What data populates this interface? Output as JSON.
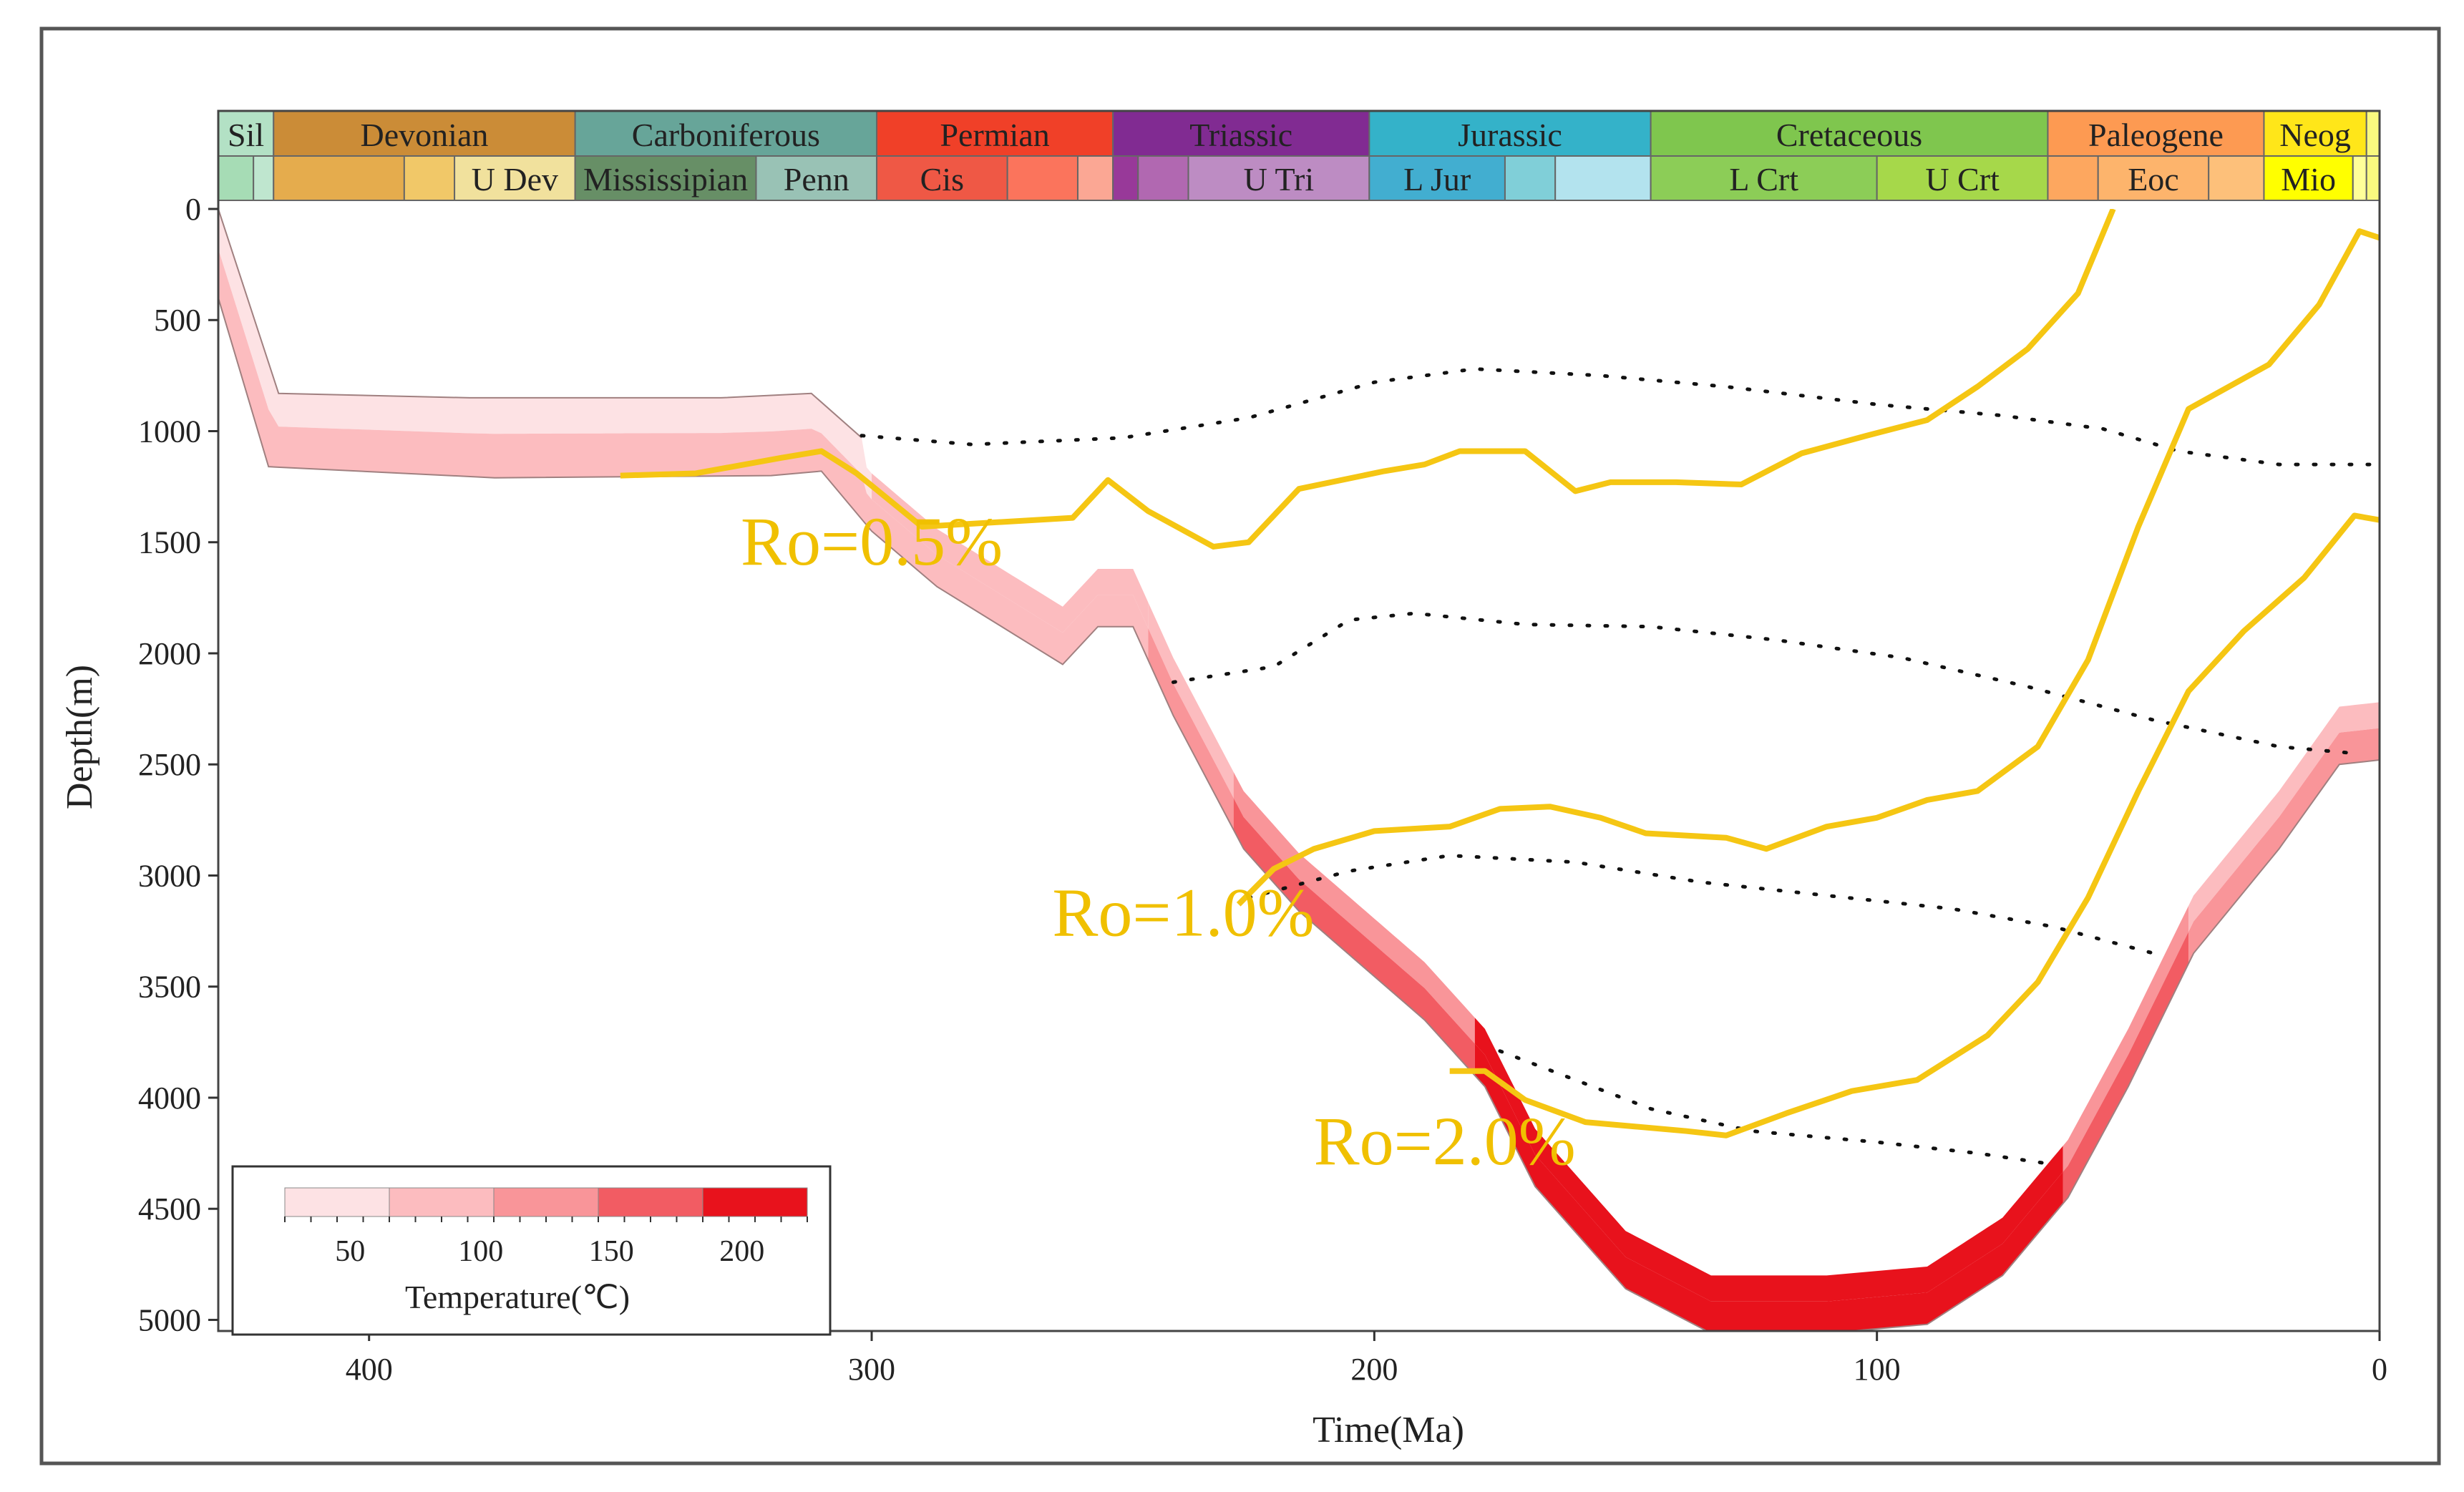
{
  "chart_data": {
    "type": "line",
    "title": "",
    "xlabel": "Time(Ma)",
    "ylabel": "Depth(m)",
    "xlim": [
      430,
      0
    ],
    "ylim": [
      0,
      5050
    ],
    "xticks": [
      400,
      300,
      200,
      100,
      0
    ],
    "yticks": [
      0,
      500,
      1000,
      1500,
      2000,
      2500,
      3000,
      3500,
      4000,
      4500,
      5000
    ],
    "periods": [
      {
        "name": "Sil",
        "start": 430,
        "end": 419,
        "color": "#b3e1c5"
      },
      {
        "name": "Devonian",
        "start": 419,
        "end": 359,
        "color": "#cb8c37"
      },
      {
        "name": "Carboniferous",
        "start": 359,
        "end": 299,
        "color": "#67a599"
      },
      {
        "name": "Permian",
        "start": 299,
        "end": 252,
        "color": "#f04028"
      },
      {
        "name": "Triassic",
        "start": 252,
        "end": 201,
        "color": "#812b92"
      },
      {
        "name": "Jurassic",
        "start": 201,
        "end": 145,
        "color": "#34b2c9"
      },
      {
        "name": "Cretaceous",
        "start": 145,
        "end": 66,
        "color": "#7fc64e"
      },
      {
        "name": "Paleogene",
        "start": 66,
        "end": 23,
        "color": "#fd9a52"
      },
      {
        "name": "Neog",
        "start": 23,
        "end": 2.6,
        "color": "#ffe619"
      },
      {
        "name": "",
        "start": 2.6,
        "end": 0,
        "color": "#f9f97f"
      }
    ],
    "epochs": [
      {
        "name": "",
        "start": 430,
        "end": 423,
        "color": "#a6dcb5"
      },
      {
        "name": "",
        "start": 423,
        "end": 419,
        "color": "#bfe6cf"
      },
      {
        "name": "",
        "start": 419,
        "end": 393,
        "color": "#e5ac4d"
      },
      {
        "name": "",
        "start": 393,
        "end": 383,
        "color": "#f1c868"
      },
      {
        "name": "U Dev",
        "start": 383,
        "end": 359,
        "color": "#f1e19d"
      },
      {
        "name": "Mississipian",
        "start": 359,
        "end": 323,
        "color": "#678f66"
      },
      {
        "name": "Penn",
        "start": 323,
        "end": 299,
        "color": "#99c2b5"
      },
      {
        "name": "Cis",
        "start": 299,
        "end": 273,
        "color": "#ef5845"
      },
      {
        "name": "",
        "start": 273,
        "end": 259,
        "color": "#fb745c"
      },
      {
        "name": "",
        "start": 259,
        "end": 252,
        "color": "#fba794"
      },
      {
        "name": "",
        "start": 252,
        "end": 247,
        "color": "#983999"
      },
      {
        "name": "",
        "start": 247,
        "end": 237,
        "color": "#b168b1"
      },
      {
        "name": "U Tri",
        "start": 237,
        "end": 201,
        "color": "#bd8cc3"
      },
      {
        "name": "L Jur",
        "start": 201,
        "end": 174,
        "color": "#42aed0"
      },
      {
        "name": "",
        "start": 174,
        "end": 164,
        "color": "#80cfd8"
      },
      {
        "name": "",
        "start": 164,
        "end": 145,
        "color": "#b3e3ee"
      },
      {
        "name": "L Crt",
        "start": 145,
        "end": 100,
        "color": "#8ccd57"
      },
      {
        "name": "U Crt",
        "start": 100,
        "end": 66,
        "color": "#a6d84a"
      },
      {
        "name": "",
        "start": 66,
        "end": 56,
        "color": "#fda75f"
      },
      {
        "name": "Eoc",
        "start": 56,
        "end": 34,
        "color": "#fdb46c"
      },
      {
        "name": "",
        "start": 34,
        "end": 23,
        "color": "#fdc07a"
      },
      {
        "name": "Mio",
        "start": 23,
        "end": 5.3,
        "color": "#ffff00"
      },
      {
        "name": "",
        "start": 5.3,
        "end": 2.6,
        "color": "#ffff99"
      },
      {
        "name": "",
        "start": 2.6,
        "end": 0,
        "color": "#f9f97f"
      }
    ],
    "burial_layers": [
      {
        "name": "layer-1",
        "top": [
          [
            430,
            0
          ],
          [
            418,
            830
          ],
          [
            380,
            850
          ],
          [
            330,
            850
          ],
          [
            312,
            830
          ],
          [
            302,
            1030
          ]
        ],
        "bottom": [
          [
            430,
            400
          ],
          [
            420,
            1160
          ],
          [
            375,
            1210
          ],
          [
            320,
            1200
          ],
          [
            310,
            1180
          ],
          [
            300,
            1450
          ],
          [
            287,
            1700
          ],
          [
            262,
            2050
          ],
          [
            255,
            1880
          ],
          [
            248,
            1880
          ],
          [
            240,
            2280
          ],
          [
            226,
            2880
          ],
          [
            215,
            3160
          ],
          [
            190,
            3650
          ],
          [
            178,
            3950
          ],
          [
            168,
            4400
          ],
          [
            150,
            4860
          ],
          [
            133,
            5060
          ],
          [
            110,
            5060
          ],
          [
            90,
            5020
          ],
          [
            75,
            4800
          ],
          [
            62,
            4450
          ],
          [
            50,
            3950
          ],
          [
            37,
            3350
          ],
          [
            20,
            2880
          ],
          [
            8,
            2500
          ],
          [
            0,
            2480
          ]
        ],
        "segments": [
          {
            "from": 430,
            "to": 300,
            "bottom_temp": 75,
            "top_temp": 35
          },
          {
            "from": 300,
            "to": 245,
            "bottom_temp": 90,
            "top_temp": 80
          },
          {
            "from": 245,
            "to": 228,
            "bottom_temp": 120,
            "top_temp": 100
          },
          {
            "from": 228,
            "to": 180,
            "bottom_temp": 160,
            "top_temp": 140
          },
          {
            "from": 180,
            "to": 63,
            "bottom_temp": 200,
            "top_temp": 190
          },
          {
            "from": 63,
            "to": 38,
            "bottom_temp": 155,
            "top_temp": 140
          },
          {
            "from": 38,
            "to": 0,
            "bottom_temp": 120,
            "top_temp": 100
          }
        ]
      }
    ],
    "ro_contours": [
      {
        "label": "Ro=0.5%",
        "points": [
          [
            350,
            1200
          ],
          [
            335,
            1190
          ],
          [
            318,
            1120
          ],
          [
            310,
            1090
          ],
          [
            303,
            1190
          ],
          [
            290,
            1430
          ],
          [
            260,
            1390
          ],
          [
            253,
            1220
          ],
          [
            245,
            1360
          ],
          [
            232,
            1520
          ],
          [
            225,
            1500
          ],
          [
            215,
            1260
          ],
          [
            198,
            1180
          ],
          [
            190,
            1150
          ],
          [
            183,
            1090
          ],
          [
            170,
            1090
          ],
          [
            160,
            1270
          ],
          [
            153,
            1230
          ],
          [
            140,
            1230
          ],
          [
            127,
            1240
          ],
          [
            115,
            1100
          ],
          [
            102,
            1020
          ],
          [
            90,
            950
          ],
          [
            80,
            800
          ],
          [
            70,
            630
          ],
          [
            60,
            380
          ],
          [
            53,
            0
          ]
        ]
      },
      {
        "label": "Ro=1.0%",
        "points": [
          [
            227,
            3130
          ],
          [
            220,
            2970
          ],
          [
            212,
            2880
          ],
          [
            200,
            2800
          ],
          [
            185,
            2780
          ],
          [
            175,
            2700
          ],
          [
            165,
            2690
          ],
          [
            155,
            2740
          ],
          [
            146,
            2810
          ],
          [
            130,
            2830
          ],
          [
            122,
            2880
          ],
          [
            110,
            2780
          ],
          [
            100,
            2740
          ],
          [
            90,
            2660
          ],
          [
            80,
            2620
          ],
          [
            68,
            2420
          ],
          [
            58,
            2030
          ],
          [
            48,
            1430
          ],
          [
            38,
            900
          ],
          [
            22,
            700
          ],
          [
            12,
            430
          ],
          [
            4,
            100
          ],
          [
            0,
            130
          ]
        ]
      },
      {
        "label": "Ro=2.0%",
        "points": [
          [
            185,
            3880
          ],
          [
            178,
            3880
          ],
          [
            170,
            4010
          ],
          [
            158,
            4110
          ],
          [
            148,
            4130
          ],
          [
            138,
            4150
          ],
          [
            130,
            4170
          ],
          [
            118,
            4070
          ],
          [
            105,
            3970
          ],
          [
            92,
            3920
          ],
          [
            78,
            3720
          ],
          [
            68,
            3480
          ],
          [
            58,
            3100
          ],
          [
            48,
            2620
          ],
          [
            38,
            2170
          ],
          [
            27,
            1900
          ],
          [
            15,
            1660
          ],
          [
            5,
            1380
          ],
          [
            0,
            1400
          ]
        ]
      }
    ],
    "dotted_lines": [
      [
        [
          302,
          1020
        ],
        [
          280,
          1060
        ],
        [
          250,
          1030
        ],
        [
          225,
          940
        ],
        [
          200,
          780
        ],
        [
          180,
          720
        ],
        [
          155,
          750
        ],
        [
          130,
          800
        ],
        [
          100,
          880
        ],
        [
          75,
          930
        ],
        [
          55,
          990
        ],
        [
          40,
          1090
        ],
        [
          20,
          1150
        ],
        [
          0,
          1150
        ]
      ],
      [
        [
          240,
          2130
        ],
        [
          220,
          2060
        ],
        [
          205,
          1850
        ],
        [
          192,
          1820
        ],
        [
          170,
          1870
        ],
        [
          145,
          1880
        ],
        [
          120,
          1940
        ],
        [
          95,
          2020
        ],
        [
          70,
          2150
        ],
        [
          45,
          2300
        ],
        [
          20,
          2420
        ],
        [
          5,
          2450
        ]
      ],
      [
        [
          225,
          3100
        ],
        [
          205,
          2980
        ],
        [
          185,
          2910
        ],
        [
          160,
          2940
        ],
        [
          135,
          3030
        ],
        [
          110,
          3090
        ],
        [
          85,
          3150
        ],
        [
          65,
          3230
        ],
        [
          45,
          3350
        ]
      ],
      [
        [
          175,
          3790
        ],
        [
          160,
          3920
        ],
        [
          145,
          4050
        ],
        [
          125,
          4150
        ],
        [
          100,
          4200
        ],
        [
          80,
          4250
        ],
        [
          65,
          4300
        ]
      ]
    ],
    "ro_label_positions": [
      [
        300,
        1600
      ],
      [
        238,
        3270
      ],
      [
        186,
        4300
      ]
    ],
    "legend": {
      "title": "Temperature(℃)",
      "tick_labels": [
        "50",
        "100",
        "150",
        "200"
      ],
      "tick_values": [
        50,
        100,
        150,
        200
      ],
      "range": [
        25,
        225
      ],
      "bins": [
        {
          "from": 25,
          "to": 65,
          "color": "#fde2e4"
        },
        {
          "from": 65,
          "to": 105,
          "color": "#fcbcbf"
        },
        {
          "from": 105,
          "to": 145,
          "color": "#f99599"
        },
        {
          "from": 145,
          "to": 185,
          "color": "#f25c63"
        },
        {
          "from": 185,
          "to": 225,
          "color": "#e8121c"
        }
      ]
    },
    "colors": {
      "ro_line": "#f5c613",
      "frame": "#555555",
      "axis": "#333333"
    }
  }
}
